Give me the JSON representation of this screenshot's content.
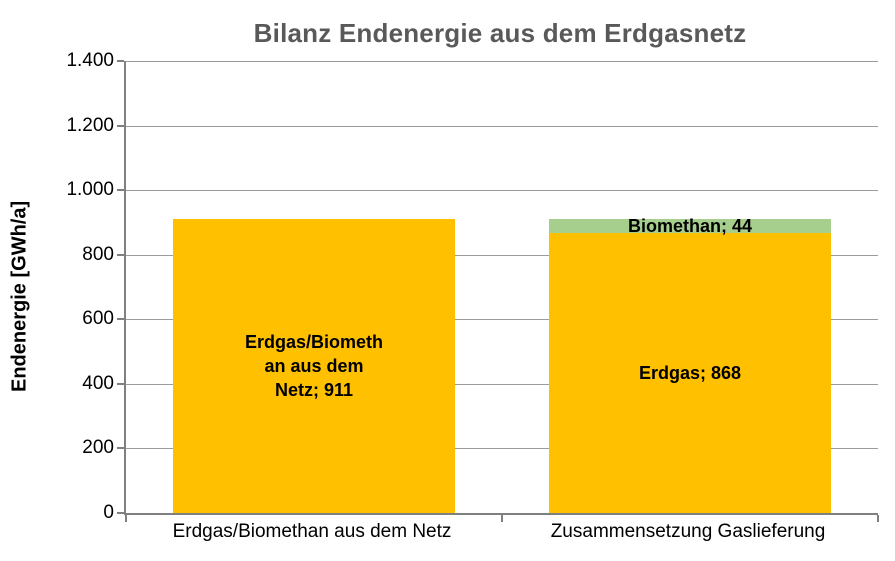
{
  "title": "Bilanz Endenergie aus dem Erdgasnetz",
  "y_axis": {
    "label": "Endenergie [GWh/a]"
  },
  "colors": {
    "erdgas": "#FFC000",
    "biomethan": "#A6CF8D",
    "title_text": "#595959",
    "gridline": "#9b9b9b",
    "axis": "#808080"
  },
  "chart_data": {
    "type": "bar",
    "stacked": true,
    "title": "Bilanz Endenergie aus dem Erdgasnetz",
    "xlabel": "",
    "ylabel": "Endenergie [GWh/a]",
    "ylim": [
      0,
      1400
    ],
    "ytick_values": [
      0,
      200,
      400,
      600,
      800,
      1000,
      1200,
      1400
    ],
    "ytick_labels": [
      "0",
      "200",
      "400",
      "600",
      "800",
      "1.000",
      "1.200",
      "1.400"
    ],
    "grid": true,
    "legend": false,
    "categories": [
      "Erdgas/Biomethan aus dem Netz",
      "Zusammensetzung Gaslieferung"
    ],
    "bars": [
      {
        "category": "Erdgas/Biomethan aus dem Netz",
        "segments": [
          {
            "name": "Erdgas/Biomethan aus dem Netz",
            "value": 911,
            "color": "#FFC000",
            "label": "Erdgas/Biometh\nan aus dem\nNetz; 911"
          }
        ]
      },
      {
        "category": "Zusammensetzung Gaslieferung",
        "segments": [
          {
            "name": "Erdgas",
            "value": 868,
            "color": "#FFC000",
            "label": "Erdgas; 868"
          },
          {
            "name": "Biomethan",
            "value": 44,
            "color": "#A6CF8D",
            "label": "Biomethan; 44"
          }
        ]
      }
    ]
  }
}
